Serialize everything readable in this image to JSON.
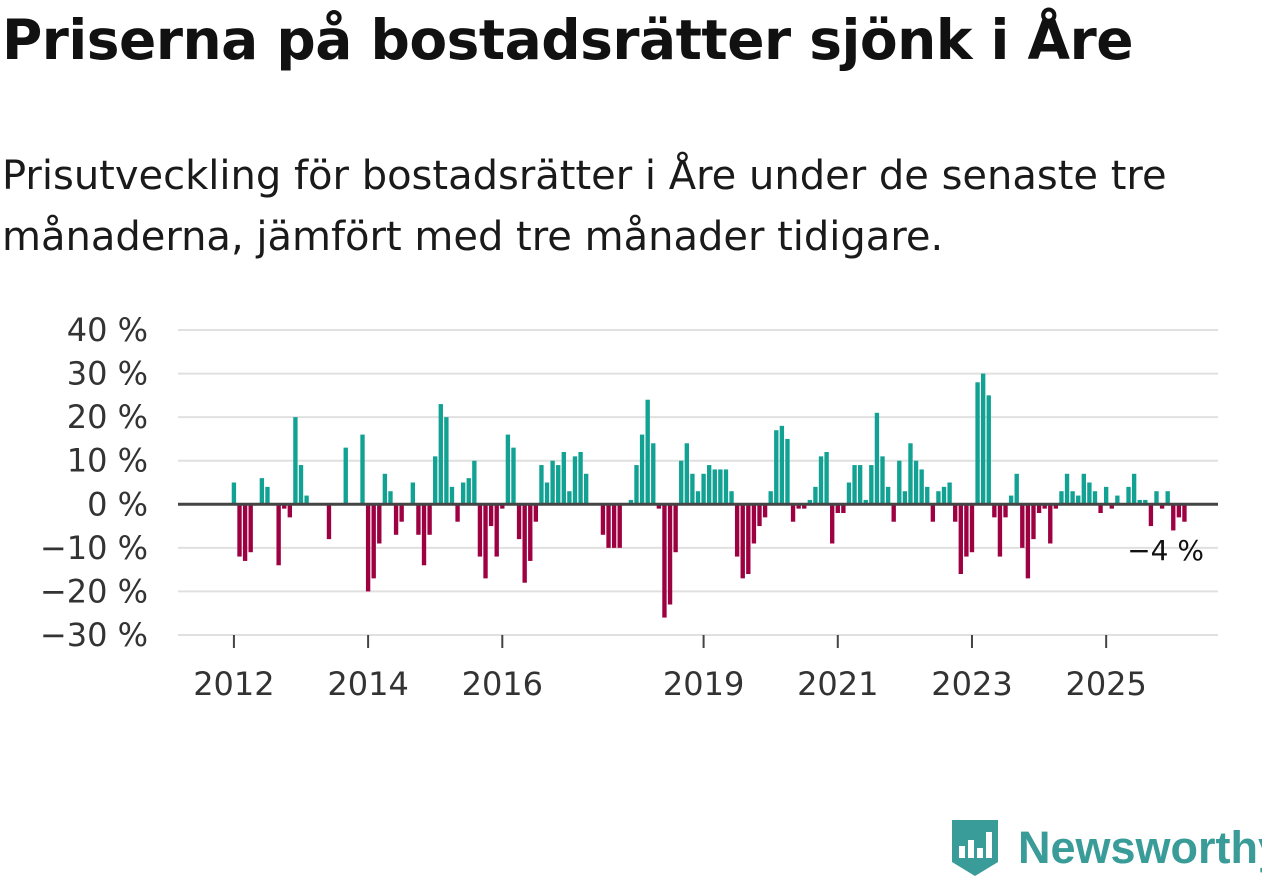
{
  "title": "Priserna på bostadsrätter sjönk i Åre",
  "subtitle": "Prisutveckling för bostadsrätter i Åre under de senaste tre månaderna, jämfört med tre månader tidigare.",
  "brand": {
    "name": "Newsworthy",
    "color": "#3a9c98",
    "icon": "newsworthy-logo-icon"
  },
  "colors": {
    "positive": "#12a293",
    "negative": "#9e0142",
    "zero_line": "#444444",
    "grid": "#e0e0e0"
  },
  "chart_data": {
    "type": "bar",
    "title": "Priserna på bostadsrätter sjönk i Åre",
    "xlabel": "",
    "ylabel": "",
    "ylim": [
      -30,
      40
    ],
    "y_ticks": [
      40,
      30,
      20,
      10,
      0,
      -10,
      -20,
      -30
    ],
    "y_tick_labels": [
      "40 %",
      "30 %",
      "20 %",
      "10 %",
      "0 %",
      "−10 %",
      "−20 %",
      "−30 %"
    ],
    "x_ticks": [
      {
        "year": 2012,
        "label": "2012"
      },
      {
        "year": 2014,
        "label": "2014"
      },
      {
        "year": 2016,
        "label": "2016"
      },
      {
        "year": 2019,
        "label": "2019"
      },
      {
        "year": 2021,
        "label": "2021"
      },
      {
        "year": 2023,
        "label": "2023"
      },
      {
        "year": 2025,
        "label": "2025"
      }
    ],
    "start": "2012-01",
    "x_domain": [
      "2011-03",
      "2026-09"
    ],
    "unit": "%",
    "end_label": "−4 %",
    "values": [
      5,
      -12,
      -13,
      -11,
      null,
      6,
      4,
      null,
      -14,
      -1,
      -3,
      20,
      9,
      2,
      null,
      null,
      null,
      -8,
      null,
      null,
      13,
      null,
      null,
      16,
      -20,
      -17,
      -9,
      7,
      3,
      -7,
      -4,
      null,
      5,
      -7,
      -14,
      -7,
      11,
      23,
      20,
      4,
      -4,
      5,
      6,
      10,
      -12,
      -17,
      -5,
      -12,
      -1,
      16,
      13,
      -8,
      -18,
      -13,
      -4,
      9,
      5,
      10,
      9,
      12,
      3,
      11,
      12,
      7,
      null,
      null,
      -7,
      -10,
      -10,
      -10,
      null,
      1,
      9,
      16,
      24,
      14,
      -1,
      -26,
      -23,
      -11,
      10,
      14,
      7,
      3,
      7,
      9,
      8,
      8,
      8,
      3,
      -12,
      -17,
      -16,
      -9,
      -5,
      -3,
      3,
      17,
      18,
      15,
      -4,
      -1,
      -1,
      1,
      4,
      11,
      12,
      -9,
      -2,
      -2,
      5,
      9,
      9,
      1,
      9,
      21,
      11,
      4,
      -4,
      10,
      3,
      14,
      10,
      8,
      4,
      -4,
      3,
      4,
      5,
      -4,
      -16,
      -12,
      -11,
      28,
      30,
      25,
      -3,
      -12,
      -3,
      2,
      7,
      -10,
      -17,
      -8,
      -2,
      -1,
      -9,
      -1,
      3,
      7,
      3,
      2,
      7,
      5,
      3,
      -2,
      4,
      -1,
      2,
      null,
      4,
      7,
      1,
      1,
      -5,
      3,
      -1,
      3,
      -6,
      -3,
      -4
    ]
  }
}
